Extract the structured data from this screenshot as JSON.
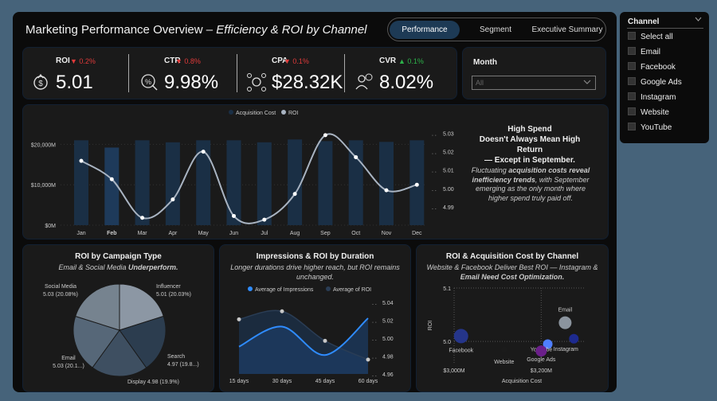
{
  "header": {
    "title_main": "Marketing Performance Overview – ",
    "title_italic": "Efficiency & ROI by Channel"
  },
  "tabs": [
    {
      "label": "Performance",
      "active": true
    },
    {
      "label": "Segment",
      "active": false
    },
    {
      "label": "Executive Summary",
      "active": false
    }
  ],
  "kpis": [
    {
      "label": "ROI",
      "value": "5.01",
      "delta": "▼ 0.2%",
      "direction": "down",
      "icon": "money-bag-icon"
    },
    {
      "label": "CTR",
      "value": "9.98%",
      "delta": "▼ 0.8%",
      "direction": "down",
      "icon": "click-percent-icon"
    },
    {
      "label": "CPA",
      "value": "$28.32K",
      "delta": "▼ 0.1%",
      "direction": "down",
      "icon": "cost-network-icon"
    },
    {
      "label": "CVR",
      "value": "8.02%",
      "delta": "▲ 0.1%",
      "direction": "up",
      "icon": "conversion-user-icon"
    }
  ],
  "month_filter": {
    "label": "Month",
    "value": "All"
  },
  "slicer": {
    "title": "Channel",
    "items": [
      "Select all",
      "Email",
      "Facebook",
      "Google Ads",
      "Instagram",
      "Website",
      "YouTube"
    ]
  },
  "insight": {
    "headline_1": "High Spend",
    "headline_2": "Doesn't Always Mean High Return",
    "headline_3": "— Except in September.",
    "body_a": "Fluctuating ",
    "body_b": "acquisition costs reveal inefficiency trends",
    "body_c": ", with September emerging as the only month where higher spend truly paid off."
  },
  "pie_panel": {
    "title": "ROI by Campaign Type",
    "subtitle_a": "Email & Social Media ",
    "subtitle_b": "Underperform."
  },
  "dur_panel": {
    "title": "Impressions & ROI by Duration",
    "subtitle": "Longer durations drive higher reach, but ROI remains unchanged."
  },
  "scatter_panel": {
    "title": "ROI & Acquisition Cost by Channel",
    "subtitle_a": "Website & Facebook Deliver Best ROI — Instagram & ",
    "subtitle_b": "Email Need Cost Optimization."
  },
  "colors": {
    "bar": "#1a2f45",
    "line": "#a9b4c2",
    "accent": "#1f3b57"
  },
  "chart_data": [
    {
      "type": "bar",
      "legend": [
        "Acquisition Cost",
        "ROI"
      ],
      "categories": [
        "Jan",
        "Feb",
        "Mar",
        "Apr",
        "May",
        "Jun",
        "Jul",
        "Aug",
        "Sep",
        "Oct",
        "Nov",
        "Dec"
      ],
      "series": [
        {
          "name": "Acquisition Cost",
          "values": [
            21.0,
            19.2,
            21.0,
            20.5,
            21.0,
            21.0,
            20.5,
            21.2,
            20.8,
            21.0,
            20.6,
            21.0
          ],
          "axis": "left"
        },
        {
          "name": "ROI",
          "values": [
            5.015,
            5.005,
            4.984,
            4.994,
            5.02,
            4.985,
            4.983,
            4.997,
            5.029,
            5.017,
            4.999,
            5.002
          ],
          "axis": "right"
        }
      ],
      "y_left_ticks": [
        "$0M",
        "$10,000M",
        "$20,000M"
      ],
      "y_left_range": [
        0,
        25
      ],
      "y_right_ticks": [
        "4.99",
        "5.00",
        "5.01",
        "5.02",
        "5.03"
      ],
      "y_right_range": [
        4.98,
        5.035
      ],
      "highlight": [
        "Feb"
      ]
    },
    {
      "type": "pie",
      "slices": [
        {
          "name": "Social Media",
          "label": "Social Media 5.03 (20.08%)",
          "line1": "Social Media",
          "line2": "5.03 (20.08%)",
          "value": 20.08,
          "color": "#8c97a4"
        },
        {
          "name": "Influencer",
          "label": "Influencer 5.01 (20.03%)",
          "line1": "Influencer",
          "line2": "5.01 (20.03%)",
          "value": 20.03,
          "color": "#2c3d4f"
        },
        {
          "name": "Search",
          "label": "Search 4.97 (19.8...)",
          "line1": "Search",
          "line2": "4.97 (19.8...)",
          "value": 19.8,
          "color": "#3e4f61"
        },
        {
          "name": "Display",
          "label": "Display 4.98 (19.9%)",
          "line1": "Display 4.98 (19.9%)",
          "line2": "",
          "value": 19.9,
          "color": "#566778"
        },
        {
          "name": "Email",
          "label": "Email 5.03 (20.1...)",
          "line1": "Email",
          "line2": "5.03 (20.1...)",
          "value": 20.1,
          "color": "#76838f"
        }
      ]
    },
    {
      "type": "area",
      "legend": [
        "Average of Impressions",
        "Average of ROI"
      ],
      "categories": [
        "15 days",
        "30 days",
        "45 days",
        "60 days"
      ],
      "series": [
        {
          "name": "Average of Impressions",
          "values": [
            0.49,
            0.85,
            0.34,
            1.0
          ],
          "color": "#2f8cff"
        },
        {
          "name": "Average of ROI",
          "values": [
            5.021,
            5.03,
            4.997,
            4.976
          ],
          "color": "#1b2b3e",
          "axis": "right"
        }
      ],
      "y_right_ticks": [
        "4.96",
        "4.98",
        "5.00",
        "5.02",
        "5.04"
      ],
      "y_right_range": [
        4.96,
        5.04
      ]
    },
    {
      "type": "scatter",
      "xlabel": "Acquisition Cost",
      "ylabel": "ROI",
      "x_ticks": [
        "$3,000M",
        "$3,200M"
      ],
      "x_range": [
        3000,
        3300
      ],
      "y_ticks": [
        "5.0",
        "5.1"
      ],
      "y_range": [
        4.96,
        5.1
      ],
      "points": [
        {
          "name": "Facebook",
          "x": 3016,
          "y": 5.01,
          "size": 9,
          "color": "#25358a"
        },
        {
          "name": "Website",
          "x": 3115,
          "y": 4.985,
          "size": 4,
          "color": "#1b1b1b"
        },
        {
          "name": "YouTube",
          "x": 3215,
          "y": 4.995,
          "size": 6,
          "color": "#4f7fff"
        },
        {
          "name": "Google Ads",
          "x": 3200,
          "y": 4.982,
          "size": 7,
          "color": "#6b1f8a"
        },
        {
          "name": "Email",
          "x": 3255,
          "y": 5.035,
          "size": 8,
          "color": "#8b949e"
        },
        {
          "name": "Instagram",
          "x": 3275,
          "y": 5.005,
          "size": 6,
          "color": "#1d2a8f"
        }
      ]
    }
  ]
}
